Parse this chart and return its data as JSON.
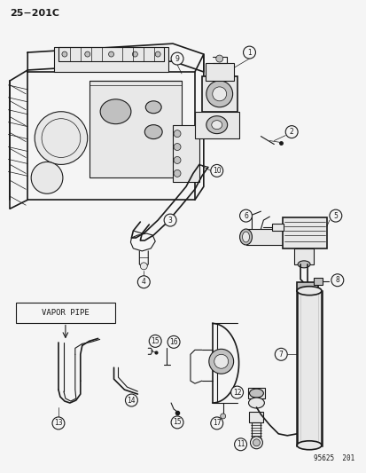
{
  "title": "25−201C",
  "catalog_number": "95625  201",
  "vapor_pipe_label": "VAPOR PIPE",
  "background_color": "#f5f5f5",
  "line_color": "#1a1a1a",
  "figure_width": 4.14,
  "figure_height": 5.33,
  "dpi": 100,
  "gray_fill": "#d8d8d8",
  "light_gray": "#e8e8e8",
  "mid_gray": "#c0c0c0"
}
